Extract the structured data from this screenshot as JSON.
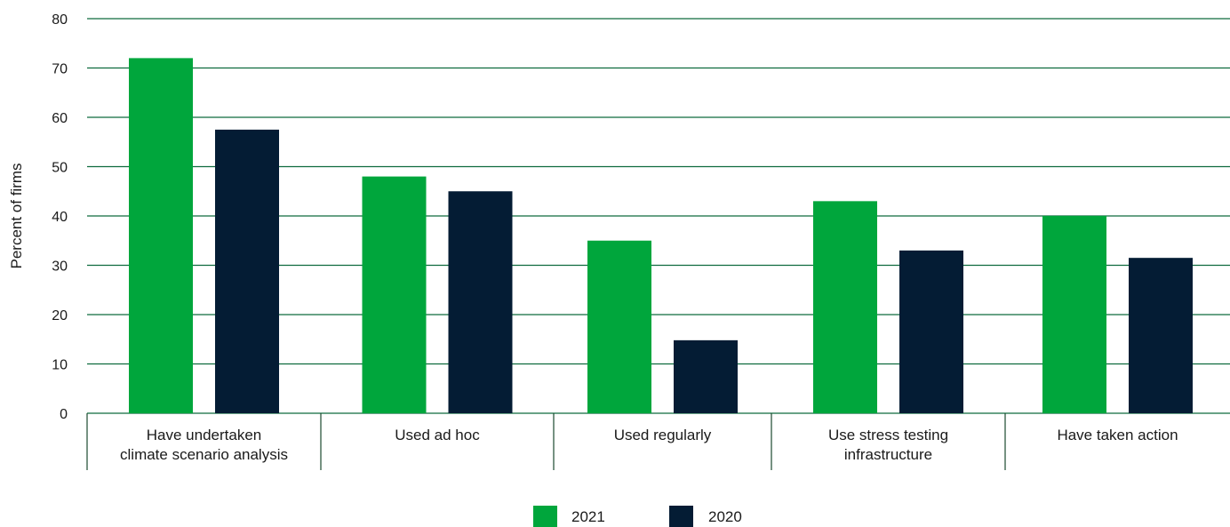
{
  "chart_data": {
    "type": "bar",
    "ylabel": "Percent of firms",
    "ylim": [
      0,
      80
    ],
    "yticks": [
      0,
      10,
      20,
      30,
      40,
      50,
      60,
      70,
      80
    ],
    "grid": true,
    "legend_position": "bottom-center",
    "categories": [
      [
        "Have undertaken",
        "climate scenario analysis"
      ],
      [
        "Used ad hoc"
      ],
      [
        "Used regularly"
      ],
      [
        "Use stress testing",
        "infrastructure"
      ],
      [
        "Have taken action"
      ]
    ],
    "series": [
      {
        "name": "2021",
        "color": "#00a63c",
        "values": [
          72,
          48,
          35,
          43,
          40
        ]
      },
      {
        "name": "2020",
        "color": "#041c34",
        "values": [
          57.5,
          45,
          14.8,
          33,
          31.5
        ]
      }
    ],
    "colors": {
      "grid": "#0f6b3f",
      "axis": "#1a4a2e"
    }
  }
}
